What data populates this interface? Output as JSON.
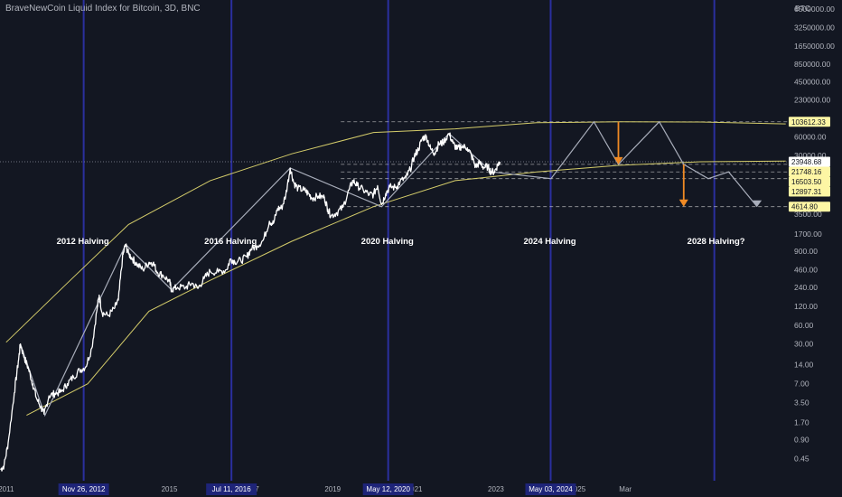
{
  "header": {
    "title": "BraveNewCoin Liquid Index for Bitcoin, 3D, BNC"
  },
  "axis": {
    "currency": "BTC"
  },
  "colors": {
    "background": "#131722",
    "price_line": "#ffffff",
    "halving_line": "#2a2f9e",
    "curve": "#d4cc6a",
    "projection": "#a8adba",
    "arrow": "#f08a24",
    "axis_text": "#b2b5be",
    "price_label_bg": "#fdf6a4"
  },
  "chart_data": {
    "type": "line",
    "title": "BraveNewCoin Liquid Index for Bitcoin, 3D, BNC",
    "y_scale": "log",
    "ylim": [
      0.2,
      9000000
    ],
    "xlim": [
      2010.85,
      2030.15
    ],
    "y_ticks": [
      "6500000.00",
      "3250000.00",
      "1650000.00",
      "850000.00",
      "450000.00",
      "230000.00",
      "60000.00",
      "30000.00",
      "3500.00",
      "1700.00",
      "900.00",
      "460.00",
      "240.00",
      "120.00",
      "60.00",
      "30.00",
      "14.00",
      "7.00",
      "3.50",
      "1.70",
      "0.90",
      "0.45"
    ],
    "x_ticks": [
      "2011",
      "2015",
      "2017",
      "2019",
      "2021",
      "2023",
      "2025",
      "Mar"
    ],
    "x_tick_positions": [
      2011.0,
      2015.0,
      2017.0,
      2019.0,
      2021.0,
      2023.0,
      2025.0,
      2026.17
    ],
    "halvings": [
      {
        "label": "2012 Halving",
        "date_label": "Nov 26, 2012",
        "x": 2012.9
      },
      {
        "label": "2016 Halving",
        "date_label": "Jul 11, 2016",
        "x": 2016.52
      },
      {
        "label": "2020 Halving",
        "date_label": "May 12, 2020",
        "x": 2020.36
      },
      {
        "label": "2024 Halving",
        "date_label": "May 03, 2024",
        "x": 2024.34
      },
      {
        "label": "2028 Halving?",
        "date_label": "",
        "x": 2028.35
      }
    ],
    "price_labels": [
      {
        "text": "103612.33",
        "value": 103612.33,
        "highlight": true
      },
      {
        "text": "23948.68",
        "value": 23948.68,
        "highlight": false
      },
      {
        "text": "21748.16",
        "value": 21748.16,
        "highlight": true
      },
      {
        "text": "16503.50",
        "value": 16503.5,
        "highlight": true
      },
      {
        "text": "12897.31",
        "value": 12897.31,
        "highlight": true
      },
      {
        "text": "4614.80",
        "value": 4614.8,
        "highlight": true
      }
    ],
    "series": [
      {
        "values": [
          [
            2010.86,
            0.3
          ],
          [
            2010.95,
            0.35
          ],
          [
            2011.05,
            0.8
          ],
          [
            2011.2,
            5
          ],
          [
            2011.3,
            16
          ],
          [
            2011.35,
            30
          ],
          [
            2011.45,
            18
          ],
          [
            2011.55,
            12
          ],
          [
            2011.65,
            7
          ],
          [
            2011.75,
            4
          ],
          [
            2011.85,
            3
          ],
          [
            2011.93,
            2.3
          ],
          [
            2012.05,
            4.5
          ],
          [
            2012.2,
            4.9
          ],
          [
            2012.35,
            5.2
          ],
          [
            2012.5,
            7
          ],
          [
            2012.65,
            9
          ],
          [
            2012.8,
            11.5
          ],
          [
            2012.95,
            13
          ],
          [
            2013.1,
            26
          ],
          [
            2013.22,
            100
          ],
          [
            2013.28,
            180
          ],
          [
            2013.35,
            95
          ],
          [
            2013.5,
            85
          ],
          [
            2013.65,
            110
          ],
          [
            2013.75,
            150
          ],
          [
            2013.85,
            700
          ],
          [
            2013.92,
            1150
          ],
          [
            2014.0,
            820
          ],
          [
            2014.1,
            680
          ],
          [
            2014.2,
            560
          ],
          [
            2014.35,
            460
          ],
          [
            2014.5,
            600
          ],
          [
            2014.6,
            590
          ],
          [
            2014.7,
            420
          ],
          [
            2014.85,
            370
          ],
          [
            2015.0,
            300
          ],
          [
            2015.05,
            220
          ],
          [
            2015.2,
            240
          ],
          [
            2015.4,
            240
          ],
          [
            2015.55,
            280
          ],
          [
            2015.7,
            230
          ],
          [
            2015.85,
            330
          ],
          [
            2016.0,
            430
          ],
          [
            2016.2,
            420
          ],
          [
            2016.4,
            460
          ],
          [
            2016.5,
            680
          ],
          [
            2016.6,
            620
          ],
          [
            2016.75,
            640
          ],
          [
            2016.9,
            740
          ],
          [
            2017.0,
            980
          ],
          [
            2017.15,
            1100
          ],
          [
            2017.3,
            1350
          ],
          [
            2017.45,
            2700
          ],
          [
            2017.55,
            2500
          ],
          [
            2017.65,
            4300
          ],
          [
            2017.75,
            4400
          ],
          [
            2017.85,
            7000
          ],
          [
            2017.96,
            19000
          ],
          [
            2018.05,
            11000
          ],
          [
            2018.15,
            9000
          ],
          [
            2018.3,
            8500
          ],
          [
            2018.4,
            7500
          ],
          [
            2018.5,
            6300
          ],
          [
            2018.65,
            6800
          ],
          [
            2018.8,
            6400
          ],
          [
            2018.88,
            4200
          ],
          [
            2018.96,
            3300
          ],
          [
            2019.1,
            3700
          ],
          [
            2019.25,
            4500
          ],
          [
            2019.4,
            8500
          ],
          [
            2019.5,
            12000
          ],
          [
            2019.6,
            10000
          ],
          [
            2019.75,
            8500
          ],
          [
            2019.9,
            7200
          ],
          [
            2020.0,
            7200
          ],
          [
            2020.1,
            10000
          ],
          [
            2020.2,
            5000
          ],
          [
            2020.3,
            7500
          ],
          [
            2020.4,
            9500
          ],
          [
            2020.55,
            9300
          ],
          [
            2020.65,
            11500
          ],
          [
            2020.8,
            13500
          ],
          [
            2020.9,
            18000
          ],
          [
            2021.0,
            29000
          ],
          [
            2021.1,
            38000
          ],
          [
            2021.2,
            57000
          ],
          [
            2021.3,
            60000
          ],
          [
            2021.4,
            38000
          ],
          [
            2021.5,
            33000
          ],
          [
            2021.6,
            46000
          ],
          [
            2021.7,
            48000
          ],
          [
            2021.85,
            67000
          ],
          [
            2021.95,
            47000
          ],
          [
            2022.05,
            38000
          ],
          [
            2022.15,
            42000
          ],
          [
            2022.3,
            40000
          ],
          [
            2022.4,
            30000
          ],
          [
            2022.5,
            20000
          ],
          [
            2022.6,
            23000
          ],
          [
            2022.7,
            19500
          ],
          [
            2022.8,
            20000
          ],
          [
            2022.88,
            16500
          ],
          [
            2022.97,
            16800
          ],
          [
            2023.05,
            22000
          ],
          [
            2023.1,
            23948.68
          ]
        ]
      }
    ],
    "channel_upper": [
      [
        2011.0,
        32
      ],
      [
        2012.5,
        280
      ],
      [
        2014.0,
        2400
      ],
      [
        2016.0,
        12000
      ],
      [
        2018.0,
        32000
      ],
      [
        2020.0,
        70000
      ],
      [
        2022.0,
        80000
      ],
      [
        2024.0,
        100000
      ],
      [
        2026.0,
        103612.33
      ],
      [
        2028.0,
        103000
      ],
      [
        2030.1,
        96000
      ]
    ],
    "channel_lower": [
      [
        2011.5,
        2.2
      ],
      [
        2013.0,
        7
      ],
      [
        2014.5,
        100
      ],
      [
        2016.0,
        310
      ],
      [
        2018.0,
        1300
      ],
      [
        2020.0,
        4614.8
      ],
      [
        2022.0,
        12000
      ],
      [
        2024.0,
        16503.5
      ],
      [
        2026.0,
        21000
      ],
      [
        2028.0,
        23948.68
      ],
      [
        2030.1,
        24500
      ]
    ],
    "zigzag_historical": [
      [
        2011.35,
        30
      ],
      [
        2011.95,
        2.2
      ],
      [
        2013.93,
        1150
      ],
      [
        2015.05,
        220
      ],
      [
        2017.96,
        19000
      ],
      [
        2020.2,
        4614.8
      ],
      [
        2021.85,
        67000
      ],
      [
        2022.9,
        16503.5
      ]
    ],
    "zigzag_projection": [
      [
        2022.9,
        16503.5
      ],
      [
        2024.35,
        12897.31
      ],
      [
        2025.4,
        103612.33
      ],
      [
        2026.0,
        21748.16
      ],
      [
        2027.0,
        103612.33
      ],
      [
        2027.6,
        21748.16
      ],
      [
        2028.2,
        12897.31
      ],
      [
        2028.7,
        16503.5
      ],
      [
        2029.4,
        4614.8
      ]
    ],
    "arrows": [
      {
        "x": 2026.0,
        "from": 103612.33,
        "to": 21748.16
      },
      {
        "x": 2027.6,
        "from": 21748.16,
        "to": 4614.8
      }
    ]
  }
}
